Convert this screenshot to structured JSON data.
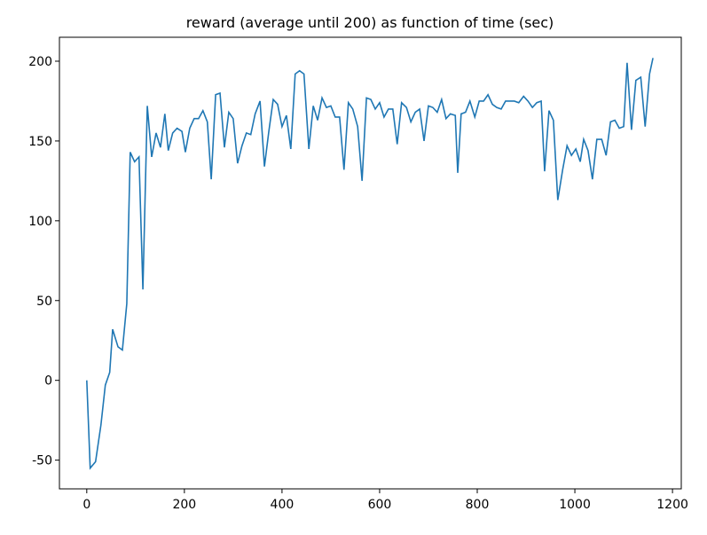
{
  "chart_data": {
    "type": "line",
    "title": "reward (average until 200) as function of time (sec)",
    "x": [
      0,
      7,
      18,
      29,
      38,
      47,
      53,
      64,
      73,
      82,
      89,
      98,
      107,
      115,
      124,
      133,
      142,
      151,
      160,
      167,
      176,
      185,
      195,
      202,
      211,
      220,
      229,
      238,
      247,
      255,
      264,
      273,
      282,
      291,
      300,
      309,
      318,
      327,
      336,
      345,
      355,
      364,
      373,
      382,
      391,
      400,
      409,
      418,
      427,
      436,
      445,
      455,
      464,
      473,
      482,
      491,
      500,
      509,
      518,
      527,
      536,
      545,
      555,
      564,
      573,
      582,
      591,
      600,
      609,
      618,
      627,
      636,
      645,
      655,
      664,
      673,
      682,
      691,
      700,
      709,
      718,
      727,
      736,
      745,
      755,
      760,
      767,
      776,
      785,
      795,
      804,
      813,
      822,
      831,
      840,
      849,
      858,
      867,
      876,
      885,
      895,
      904,
      913,
      922,
      931,
      938,
      947,
      956,
      965,
      975,
      984,
      993,
      1002,
      1011,
      1018,
      1027,
      1036,
      1045,
      1055,
      1064,
      1073,
      1082,
      1091,
      1100,
      1107,
      1116,
      1125,
      1135,
      1144,
      1153,
      1160
    ],
    "series": [
      {
        "name": "reward",
        "color": "#1f77b4",
        "values": [
          0,
          -55,
          -51,
          -28,
          -3,
          5,
          32,
          21,
          19,
          48,
          143,
          137,
          140,
          57,
          172,
          140,
          155,
          146,
          167,
          144,
          155,
          158,
          156,
          143,
          158,
          164,
          164,
          169,
          162,
          126,
          179,
          180,
          146,
          168,
          164,
          136,
          147,
          155,
          154,
          167,
          175,
          134,
          156,
          176,
          173,
          159,
          166,
          145,
          192,
          194,
          192,
          145,
          172,
          163,
          177,
          171,
          172,
          165,
          165,
          132,
          174,
          170,
          159,
          125,
          177,
          176,
          170,
          174,
          165,
          170,
          170,
          148,
          174,
          171,
          162,
          168,
          170,
          150,
          172,
          171,
          168,
          176,
          164,
          167,
          166,
          130,
          167,
          168,
          175,
          165,
          175,
          175,
          179,
          173,
          171,
          170,
          175,
          175,
          175,
          174,
          178,
          175,
          171,
          174,
          175,
          131,
          169,
          163,
          113,
          132,
          147,
          141,
          145,
          137,
          151,
          144,
          126,
          151,
          151,
          141,
          162,
          163,
          158,
          159,
          199,
          157,
          188,
          190,
          159,
          192,
          202
        ]
      }
    ],
    "xlim": [
      -56,
      1218
    ],
    "ylim": [
      -68,
      215
    ],
    "xticks": [
      0,
      200,
      400,
      600,
      800,
      1000,
      1200
    ],
    "yticks": [
      -50,
      0,
      50,
      100,
      150,
      200
    ]
  }
}
